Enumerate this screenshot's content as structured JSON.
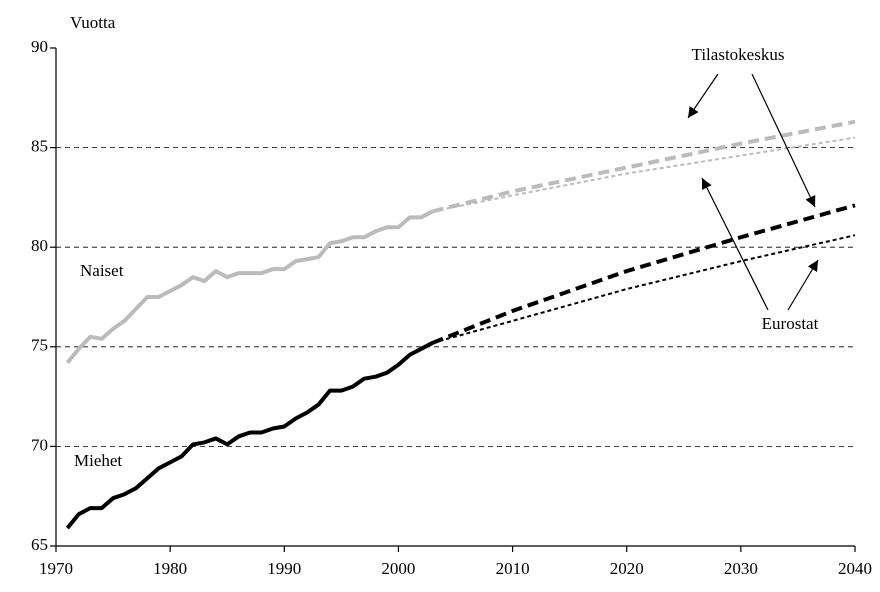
{
  "chart_data": {
    "type": "line",
    "y_label": "Vuotta",
    "annotations": [
      "Naiset",
      "Miehet",
      "Tilastokeskus",
      "Eurostat"
    ],
    "xlim": [
      1970,
      2040
    ],
    "xticks": [
      1970,
      1980,
      1990,
      2000,
      2010,
      2020,
      2030,
      2040
    ],
    "ylim": [
      65,
      90
    ],
    "yticks": [
      65,
      70,
      75,
      80,
      85,
      90
    ],
    "grid": true,
    "series": [
      {
        "color": "#bbbbbb",
        "style": "solid",
        "x": [
          1971,
          1972,
          1973,
          1974,
          1975,
          1976,
          1977,
          1978,
          1979,
          1980,
          1981,
          1982,
          1983,
          1984,
          1985,
          1986,
          1987,
          1988,
          1989,
          1990,
          1991,
          1992,
          1993,
          1994,
          1995,
          1996,
          1997,
          1998,
          1999,
          2000,
          2001,
          2002,
          2003
        ],
        "values": [
          74.2,
          74.9,
          75.5,
          75.4,
          75.9,
          76.3,
          76.9,
          77.5,
          77.5,
          77.8,
          78.1,
          78.5,
          78.3,
          78.8,
          78.5,
          78.7,
          78.7,
          78.7,
          78.9,
          78.9,
          79.3,
          79.4,
          79.5,
          80.2,
          80.3,
          80.5,
          80.5,
          80.8,
          81.0,
          81.0,
          81.5,
          81.5,
          81.8
        ]
      },
      {
        "color": "#000000",
        "style": "solid",
        "x": [
          1971,
          1972,
          1973,
          1974,
          1975,
          1976,
          1977,
          1978,
          1979,
          1980,
          1981,
          1982,
          1983,
          1984,
          1985,
          1986,
          1987,
          1988,
          1989,
          1990,
          1991,
          1992,
          1993,
          1994,
          1995,
          1996,
          1997,
          1998,
          1999,
          2000,
          2001,
          2002,
          2003
        ],
        "values": [
          65.9,
          66.6,
          66.9,
          66.9,
          67.4,
          67.6,
          67.9,
          68.4,
          68.9,
          69.2,
          69.5,
          70.1,
          70.2,
          70.4,
          70.1,
          70.5,
          70.7,
          70.7,
          70.9,
          71.0,
          71.4,
          71.7,
          72.1,
          72.8,
          72.8,
          73.0,
          73.4,
          73.5,
          73.7,
          74.1,
          74.6,
          74.9,
          75.2
        ]
      },
      {
        "color": "#bbbbbb",
        "style": "dashed",
        "x": [
          2003,
          2010,
          2020,
          2030,
          2040
        ],
        "values": [
          81.8,
          82.8,
          84.0,
          85.2,
          86.3
        ]
      },
      {
        "color": "#000000",
        "style": "dashed",
        "x": [
          2003,
          2010,
          2020,
          2030,
          2040
        ],
        "values": [
          75.2,
          76.8,
          78.8,
          80.5,
          82.1
        ]
      },
      {
        "color": "#bbbbbb",
        "style": "dotted",
        "x": [
          2003,
          2010,
          2020,
          2030,
          2040
        ],
        "values": [
          81.8,
          82.6,
          83.7,
          84.6,
          85.5
        ]
      },
      {
        "color": "#000000",
        "style": "dotted",
        "x": [
          2003,
          2010,
          2020,
          2030,
          2040
        ],
        "values": [
          75.2,
          76.3,
          77.9,
          79.3,
          80.6
        ]
      }
    ]
  }
}
